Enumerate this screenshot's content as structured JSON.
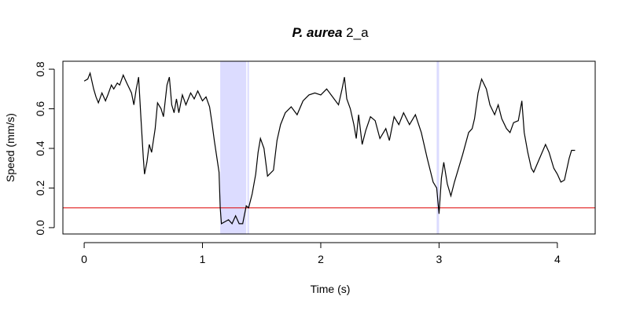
{
  "chart_data": {
    "type": "line",
    "title_italic": "P. aurea",
    "title_rest": "2_a",
    "x_label": "Time (s)",
    "y_label": "Speed (mm/s)",
    "xlim": [
      -0.18,
      4.32
    ],
    "ylim": [
      -0.032,
      0.84
    ],
    "xticks": [
      0,
      1,
      2,
      3,
      4
    ],
    "yticks": [
      {
        "value": 0,
        "label": "0.0"
      },
      0.2,
      0.4,
      0.6,
      0.8
    ],
    "threshold": 0.1,
    "threshold_color": "#dd0000",
    "highlight_ranges": [
      [
        1.15,
        1.37
      ],
      [
        1.38,
        1.39
      ],
      [
        2.98,
        3.0
      ]
    ],
    "highlight_color": "#dcdcff",
    "x": [
      0,
      0.03,
      0.05,
      0.08,
      0.1,
      0.12,
      0.15,
      0.18,
      0.2,
      0.23,
      0.25,
      0.28,
      0.3,
      0.33,
      0.36,
      0.4,
      0.42,
      0.44,
      0.46,
      0.48,
      0.5,
      0.51,
      0.53,
      0.55,
      0.57,
      0.6,
      0.62,
      0.65,
      0.67,
      0.7,
      0.72,
      0.74,
      0.76,
      0.78,
      0.8,
      0.83,
      0.86,
      0.9,
      0.93,
      0.96,
      1.0,
      1.03,
      1.06,
      1.08,
      1.1,
      1.12,
      1.14,
      1.15,
      1.16,
      1.19,
      1.22,
      1.25,
      1.28,
      1.31,
      1.34,
      1.37,
      1.39,
      1.42,
      1.45,
      1.47,
      1.49,
      1.52,
      1.55,
      1.6,
      1.63,
      1.66,
      1.7,
      1.75,
      1.8,
      1.85,
      1.9,
      1.95,
      2.0,
      2.05,
      2.1,
      2.15,
      2.18,
      2.2,
      2.22,
      2.25,
      2.28,
      2.3,
      2.32,
      2.35,
      2.38,
      2.42,
      2.46,
      2.5,
      2.55,
      2.58,
      2.62,
      2.66,
      2.7,
      2.75,
      2.8,
      2.85,
      2.9,
      2.95,
      2.98,
      3.0,
      3.02,
      3.04,
      3.07,
      3.1,
      3.13,
      3.17,
      3.2,
      3.25,
      3.28,
      3.3,
      3.33,
      3.36,
      3.4,
      3.43,
      3.47,
      3.5,
      3.53,
      3.57,
      3.6,
      3.63,
      3.67,
      3.7,
      3.72,
      3.75,
      3.78,
      3.8,
      3.85,
      3.9,
      3.93,
      3.97,
      4.0,
      4.03,
      4.06,
      4.1,
      4.12,
      4.15
    ],
    "series": [
      {
        "color": "#000000",
        "values": [
          0.74,
          0.75,
          0.78,
          0.7,
          0.66,
          0.63,
          0.68,
          0.64,
          0.67,
          0.72,
          0.7,
          0.73,
          0.72,
          0.77,
          0.73,
          0.68,
          0.62,
          0.7,
          0.76,
          0.55,
          0.35,
          0.27,
          0.33,
          0.42,
          0.38,
          0.5,
          0.63,
          0.6,
          0.56,
          0.72,
          0.76,
          0.62,
          0.58,
          0.65,
          0.58,
          0.67,
          0.62,
          0.68,
          0.65,
          0.69,
          0.64,
          0.66,
          0.61,
          0.53,
          0.44,
          0.36,
          0.28,
          0.1,
          0.02,
          0.03,
          0.04,
          0.02,
          0.06,
          0.02,
          0.02,
          0.11,
          0.1,
          0.17,
          0.27,
          0.38,
          0.45,
          0.4,
          0.26,
          0.29,
          0.44,
          0.52,
          0.58,
          0.61,
          0.57,
          0.64,
          0.67,
          0.68,
          0.67,
          0.7,
          0.66,
          0.62,
          0.7,
          0.76,
          0.65,
          0.6,
          0.52,
          0.45,
          0.57,
          0.42,
          0.49,
          0.56,
          0.54,
          0.45,
          0.5,
          0.44,
          0.56,
          0.52,
          0.58,
          0.52,
          0.57,
          0.48,
          0.35,
          0.23,
          0.2,
          0.07,
          0.25,
          0.33,
          0.22,
          0.16,
          0.23,
          0.31,
          0.37,
          0.48,
          0.5,
          0.55,
          0.68,
          0.75,
          0.7,
          0.62,
          0.57,
          0.62,
          0.55,
          0.5,
          0.48,
          0.53,
          0.54,
          0.64,
          0.48,
          0.38,
          0.3,
          0.28,
          0.35,
          0.42,
          0.38,
          0.3,
          0.27,
          0.23,
          0.24,
          0.35,
          0.39,
          0.39
        ]
      }
    ]
  }
}
